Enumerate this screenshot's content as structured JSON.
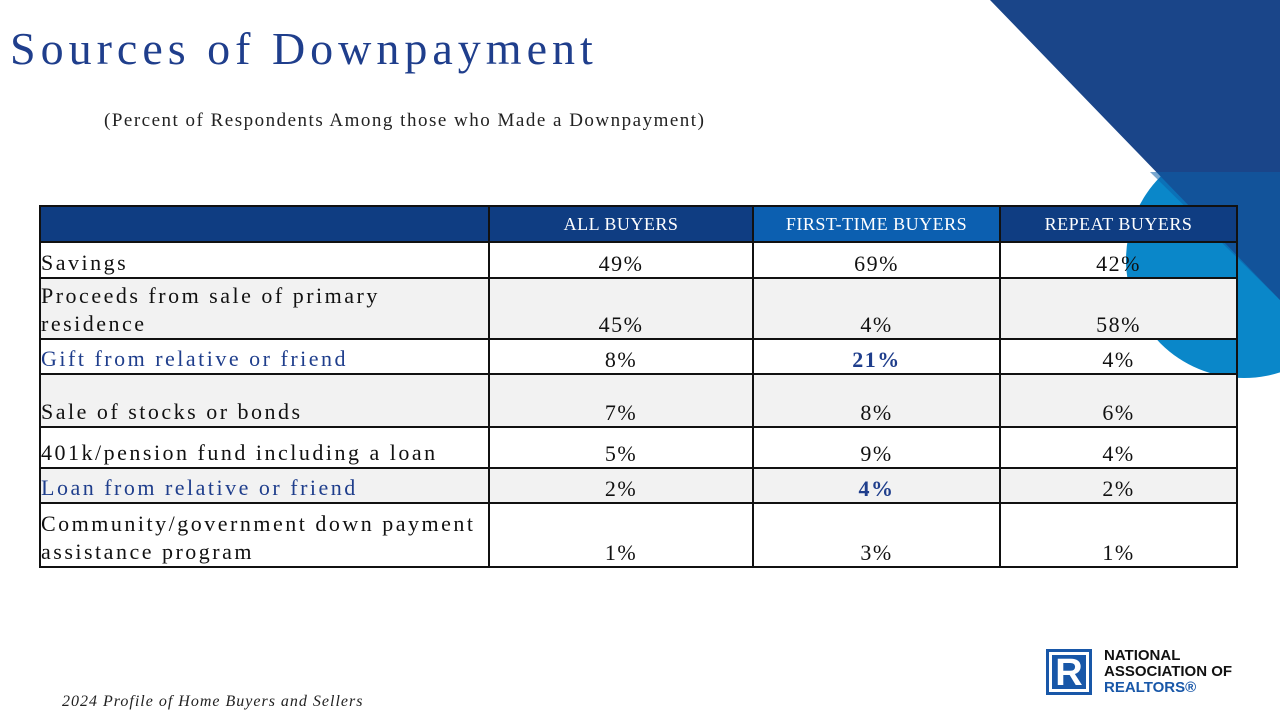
{
  "slide": {
    "title": "Sources of Downpayment",
    "subtitle": "(Percent of Respondents Among those who Made a Downpayment)",
    "footer": "2024 Profile of Home Buyers and Sellers"
  },
  "table": {
    "headers": [
      "ALL BUYERS",
      "FIRST-TIME BUYERS",
      "REPEAT BUYERS"
    ],
    "rows": [
      {
        "label": "Savings",
        "all": "49%",
        "first": "69%",
        "repeat": "42%"
      },
      {
        "label": "Proceeds from sale of primary residence",
        "all": "45%",
        "first": "4%",
        "repeat": "58%"
      },
      {
        "label": "Gift from relative or friend",
        "all": "8%",
        "first": "21%",
        "repeat": "4%"
      },
      {
        "label": "Sale of stocks or bonds",
        "all": "7%",
        "first": "8%",
        "repeat": "6%"
      },
      {
        "label": "401k/pension fund including a loan",
        "all": "5%",
        "first": "9%",
        "repeat": "4%"
      },
      {
        "label": "Loan from relative or friend",
        "all": "2%",
        "first": "4%",
        "repeat": "2%"
      },
      {
        "label": "Community/government down payment assistance program",
        "all": "1%",
        "first": "3%",
        "repeat": "1%"
      }
    ]
  },
  "logo": {
    "mark": "R",
    "line1": "NATIONAL",
    "line2": "ASSOCIATION OF",
    "line3": "REALTORS®"
  },
  "colors": {
    "title_blue": "#1f3e8c",
    "header_navy": "#0f3d82",
    "header_blue": "#0c5fb0",
    "deco_light_blue": "#0a87c9"
  }
}
